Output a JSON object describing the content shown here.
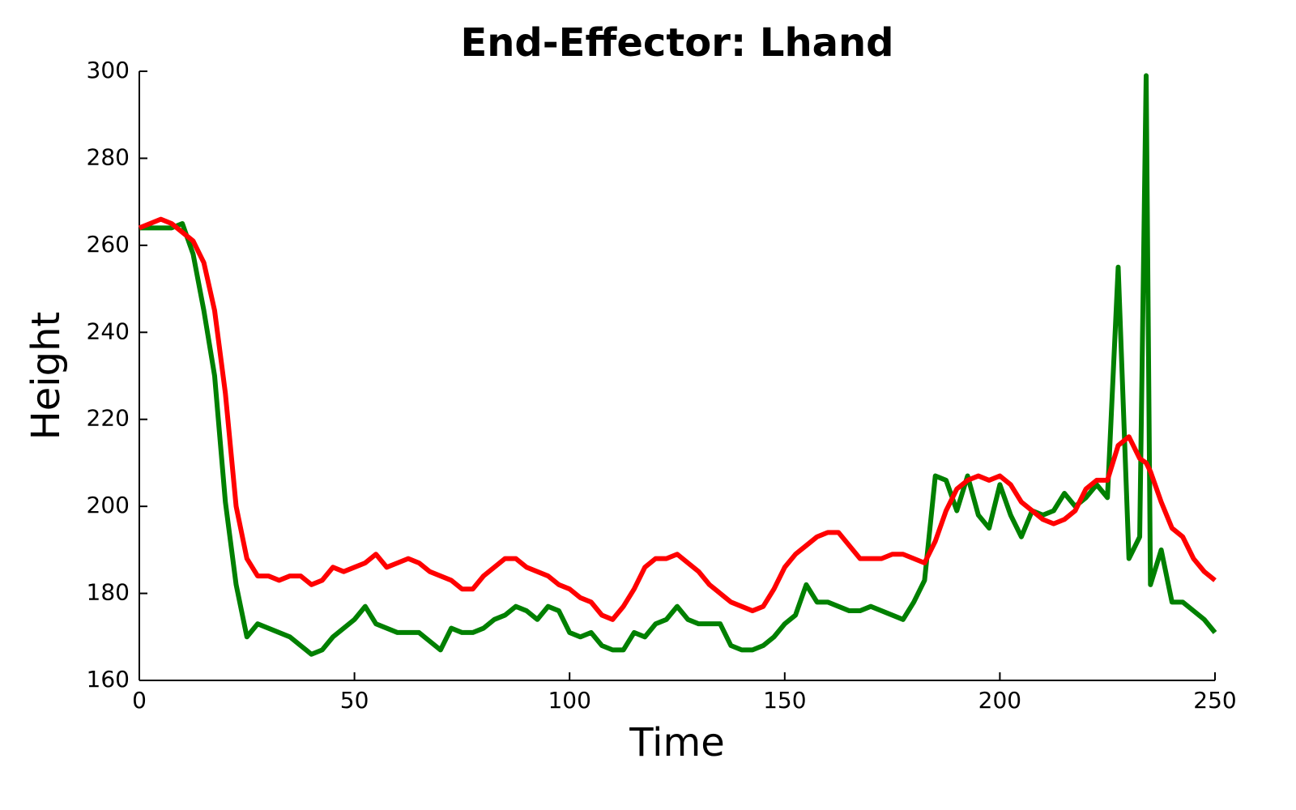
{
  "chart_data": {
    "type": "line",
    "title": "End-Effector: Lhand",
    "xlabel": "Time",
    "ylabel": "Height",
    "x": [
      0,
      2.5,
      5,
      7.5,
      10,
      12.5,
      15,
      17.5,
      20,
      22.5,
      25,
      27.5,
      30,
      32.5,
      35,
      37.5,
      40,
      42.5,
      45,
      47.5,
      50,
      52.5,
      55,
      57.5,
      60,
      62.5,
      65,
      67.5,
      70,
      72.5,
      75,
      77.5,
      80,
      82.5,
      85,
      87.5,
      90,
      92.5,
      95,
      97.5,
      100,
      102.5,
      105,
      107.5,
      110,
      112.5,
      115,
      117.5,
      120,
      122.5,
      125,
      127.5,
      130,
      132.5,
      135,
      137.5,
      140,
      142.5,
      145,
      147.5,
      150,
      152.5,
      155,
      157.5,
      160,
      162.5,
      165,
      167.5,
      170,
      172.5,
      175,
      177.5,
      180,
      182.5,
      185,
      187.5,
      190,
      192.5,
      195,
      197.5,
      200,
      202.5,
      205,
      207.5,
      210,
      212.5,
      215,
      217.5,
      220,
      222.5,
      225,
      227.5,
      230,
      232.5,
      234,
      235,
      237.5,
      240,
      242.5,
      245,
      247.5,
      250
    ],
    "series": [
      {
        "color": "#008000",
        "values": [
          264,
          264,
          264,
          264,
          265,
          258,
          245,
          230,
          201,
          182,
          170,
          173,
          172,
          171,
          170,
          168,
          166,
          167,
          170,
          172,
          174,
          177,
          173,
          172,
          171,
          171,
          171,
          169,
          167,
          172,
          171,
          171,
          172,
          174,
          175,
          177,
          176,
          174,
          177,
          176,
          171,
          170,
          171,
          168,
          167,
          167,
          171,
          170,
          173,
          174,
          177,
          174,
          173,
          173,
          173,
          168,
          167,
          167,
          168,
          170,
          173,
          175,
          182,
          178,
          178,
          177,
          176,
          176,
          177,
          176,
          175,
          174,
          178,
          183,
          207,
          206,
          199,
          207,
          198,
          195,
          205,
          198,
          193,
          199,
          198,
          199,
          203,
          200,
          202,
          205,
          202,
          255,
          188,
          193,
          299,
          182,
          190,
          178,
          178,
          176,
          174,
          171
        ]
      },
      {
        "color": "#ff0000",
        "values": [
          264,
          265,
          266,
          265,
          263,
          261,
          256,
          245,
          226,
          200,
          188,
          184,
          184,
          183,
          184,
          184,
          182,
          183,
          186,
          185,
          186,
          187,
          189,
          186,
          187,
          188,
          187,
          185,
          184,
          183,
          181,
          181,
          184,
          186,
          188,
          188,
          186,
          185,
          184,
          182,
          181,
          179,
          178,
          175,
          174,
          177,
          181,
          186,
          188,
          188,
          189,
          187,
          185,
          182,
          180,
          178,
          177,
          176,
          177,
          181,
          186,
          189,
          191,
          193,
          194,
          194,
          191,
          188,
          188,
          188,
          189,
          189,
          188,
          187,
          192,
          199,
          204,
          206,
          207,
          206,
          207,
          205,
          201,
          199,
          197,
          196,
          197,
          199,
          204,
          206,
          206,
          214,
          216,
          211,
          210,
          208,
          201,
          195,
          193,
          188,
          185,
          183
        ]
      }
    ],
    "xlim": [
      0,
      250
    ],
    "xticks": [
      0,
      50,
      100,
      150,
      200,
      250
    ],
    "ylim": [
      160,
      300
    ],
    "yticks": [
      160,
      180,
      200,
      220,
      240,
      260,
      280,
      300
    ]
  }
}
